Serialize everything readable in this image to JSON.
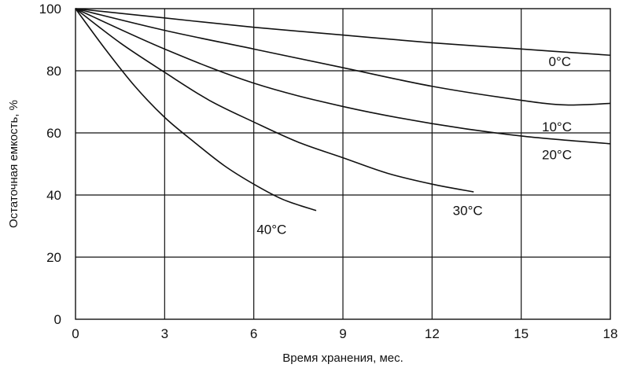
{
  "chart_data": {
    "type": "line",
    "xlabel": "Время хранения, мес.",
    "ylabel": "Остаточная емкость, %",
    "xlim": [
      0,
      18
    ],
    "ylim": [
      0,
      100
    ],
    "xticks": [
      0,
      3,
      6,
      9,
      12,
      15,
      18
    ],
    "yticks": [
      0,
      20,
      40,
      60,
      80,
      100
    ],
    "grid": true,
    "series": [
      {
        "name": "0°C",
        "x": [
          0,
          3,
          6,
          9,
          12,
          15,
          18
        ],
        "y": [
          100,
          97,
          94,
          91.5,
          89,
          87,
          85
        ]
      },
      {
        "name": "10°C",
        "x": [
          0,
          3,
          6,
          9,
          12,
          15,
          16.5,
          18
        ],
        "y": [
          100,
          93,
          87,
          81,
          75,
          70.5,
          69,
          69.5
        ]
      },
      {
        "name": "20°C",
        "x": [
          0,
          3,
          6,
          9,
          12,
          15,
          18
        ],
        "y": [
          100,
          87,
          76,
          68.5,
          63,
          59,
          56.5
        ]
      },
      {
        "name": "30°C",
        "x": [
          0,
          1.5,
          3,
          4.5,
          6,
          7.5,
          9,
          10.5,
          12,
          13.4
        ],
        "y": [
          100,
          89,
          79.5,
          70.5,
          63.5,
          57,
          52,
          47,
          43.5,
          41
        ]
      },
      {
        "name": "40°C",
        "x": [
          0,
          1,
          2,
          3,
          4,
          5,
          6,
          7,
          8.1
        ],
        "y": [
          100,
          87,
          75,
          65,
          57,
          49.5,
          43.5,
          38.5,
          35
        ]
      }
    ]
  }
}
